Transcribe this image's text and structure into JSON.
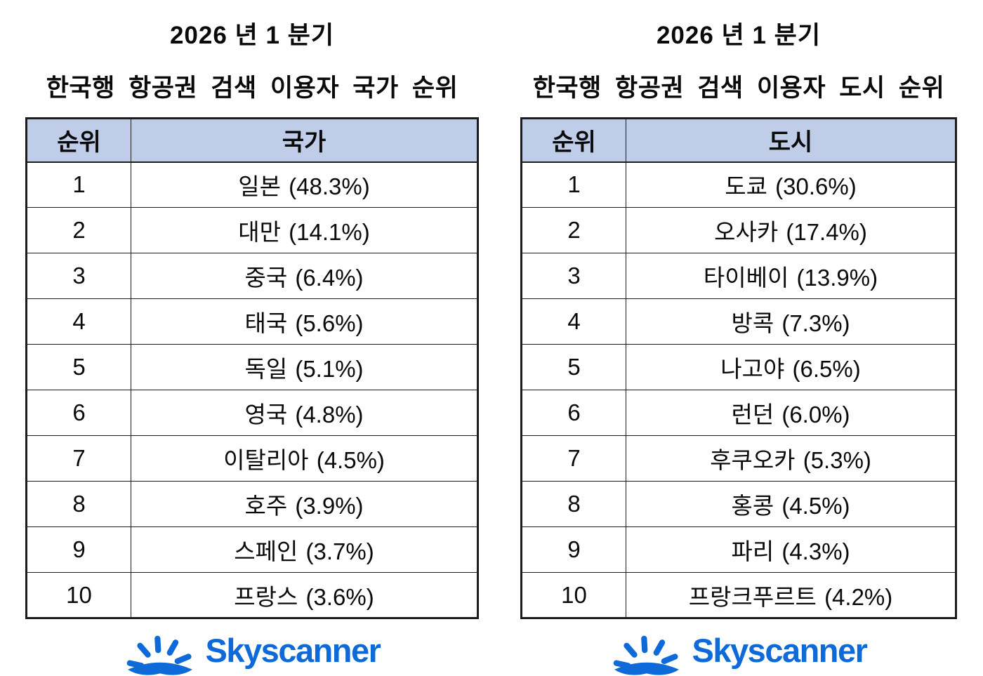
{
  "colors": {
    "header_bg": "#c0cde9",
    "border": "#1c1c1c",
    "logo_blue": "#0d6ad8",
    "text": "#0a0a0a",
    "page_bg": "#ffffff"
  },
  "logo": {
    "text": "Skyscanner",
    "icon": "sunrise-icon"
  },
  "tables": [
    {
      "id": "country-ranking",
      "title_line1": "2026 년 1 분기",
      "title_line2": "한국행 항공권 검색 이용자 국가 순위",
      "rank_header": "순위",
      "value_header": "국가",
      "rows": [
        {
          "rank": "1",
          "value": "일본 (48.3%)"
        },
        {
          "rank": "2",
          "value": "대만 (14.1%)"
        },
        {
          "rank": "3",
          "value": "중국 (6.4%)"
        },
        {
          "rank": "4",
          "value": "태국 (5.6%)"
        },
        {
          "rank": "5",
          "value": "독일 (5.1%)"
        },
        {
          "rank": "6",
          "value": "영국 (4.8%)"
        },
        {
          "rank": "7",
          "value": "이탈리아 (4.5%)"
        },
        {
          "rank": "8",
          "value": "호주 (3.9%)"
        },
        {
          "rank": "9",
          "value": "스페인 (3.7%)"
        },
        {
          "rank": "10",
          "value": "프랑스 (3.6%)"
        }
      ]
    },
    {
      "id": "city-ranking",
      "title_line1": "2026 년 1 분기",
      "title_line2": "한국행 항공권 검색 이용자 도시 순위",
      "rank_header": "순위",
      "value_header": "도시",
      "rows": [
        {
          "rank": "1",
          "value": "도쿄 (30.6%)"
        },
        {
          "rank": "2",
          "value": "오사카 (17.4%)"
        },
        {
          "rank": "3",
          "value": "타이베이 (13.9%)"
        },
        {
          "rank": "4",
          "value": "방콕 (7.3%)"
        },
        {
          "rank": "5",
          "value": "나고야 (6.5%)"
        },
        {
          "rank": "6",
          "value": "런던 (6.0%)"
        },
        {
          "rank": "7",
          "value": "후쿠오카 (5.3%)"
        },
        {
          "rank": "8",
          "value": "홍콩 (4.5%)"
        },
        {
          "rank": "9",
          "value": "파리 (4.3%)"
        },
        {
          "rank": "10",
          "value": "프랑크푸르트 (4.2%)"
        }
      ]
    }
  ],
  "chart_data": [
    {
      "type": "table",
      "title": "2026 년 1 분기 한국행 항공권 검색 이용자 국가 순위",
      "columns": [
        "순위",
        "국가"
      ],
      "categories": [
        "일본",
        "대만",
        "중국",
        "태국",
        "독일",
        "영국",
        "이탈리아",
        "호주",
        "스페인",
        "프랑스"
      ],
      "values": [
        48.3,
        14.1,
        6.4,
        5.6,
        5.1,
        4.8,
        4.5,
        3.9,
        3.7,
        3.6
      ],
      "unit": "%"
    },
    {
      "type": "table",
      "title": "2026 년 1 분기 한국행 항공권 검색 이용자 도시 순위",
      "columns": [
        "순위",
        "도시"
      ],
      "categories": [
        "도쿄",
        "오사카",
        "타이베이",
        "방콕",
        "나고야",
        "런던",
        "후쿠오카",
        "홍콩",
        "파리",
        "프랑크푸르트"
      ],
      "values": [
        30.6,
        17.4,
        13.9,
        7.3,
        6.5,
        6.0,
        5.3,
        4.5,
        4.3,
        4.2
      ],
      "unit": "%"
    }
  ]
}
